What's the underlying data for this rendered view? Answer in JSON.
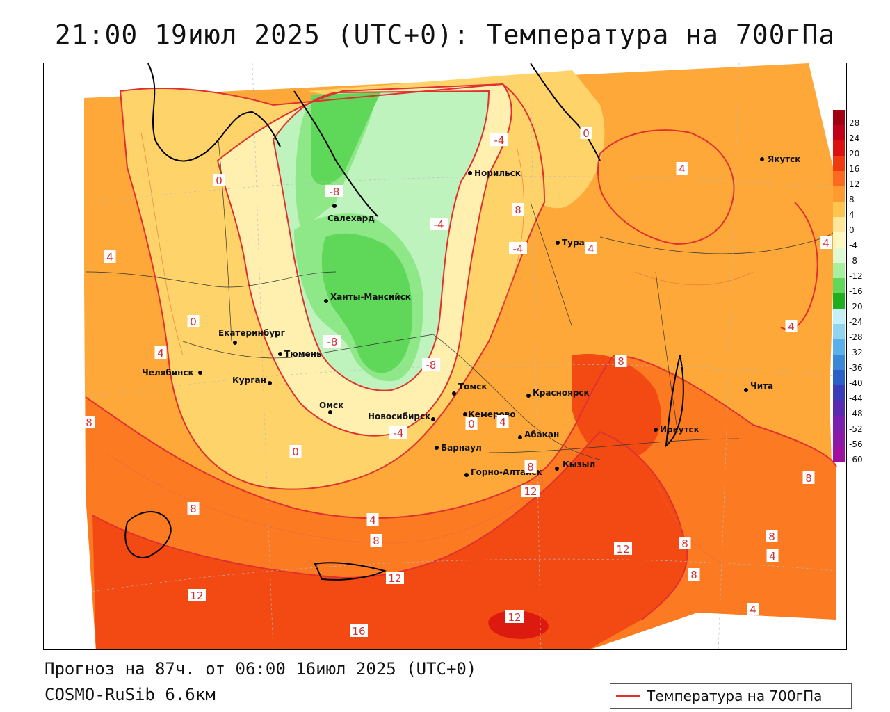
{
  "title": "21:00 19июл 2025 (UTC+0): Температура на 700гПа",
  "subtitle": "Прогноз на 87ч. от 06:00 16июл 2025 (UTC+0)",
  "model": "COSMO-RuSib 6.6км",
  "legend": {
    "label": "Температура на 700гПа",
    "line_color": "#e03030"
  },
  "colorbar": {
    "ticks": [
      "28",
      "24",
      "20",
      "16",
      "12",
      "8",
      "4",
      "0",
      "-4",
      "-8",
      "-12",
      "-16",
      "-20",
      "-24",
      "-28",
      "-32",
      "-36",
      "-40",
      "-44",
      "-48",
      "-52",
      "-56",
      "-60"
    ],
    "colors": [
      "#a00010",
      "#c00018",
      "#dd1010",
      "#f03a10",
      "#fb6a20",
      "#fd9a30",
      "#fec450",
      "#fee79a",
      "#fff6c2",
      "#dffad2",
      "#a8f0a0",
      "#62d85a",
      "#1fae1f",
      "#c6f0f8",
      "#90d4ee",
      "#5ab0e8",
      "#3c88d8",
      "#2a60c8",
      "#3a3cb8",
      "#5a2ab0",
      "#7a20b0",
      "#8c18a8",
      "#a010a0"
    ]
  },
  "cities": [
    {
      "name": "Якутск"
    },
    {
      "name": "Норильск"
    },
    {
      "name": "Салехард"
    },
    {
      "name": "Тура"
    },
    {
      "name": "Ханты-Мансийск"
    },
    {
      "name": "Екатеринбург"
    },
    {
      "name": "Тюмень"
    },
    {
      "name": "Челябинск"
    },
    {
      "name": "Курган"
    },
    {
      "name": "Омск"
    },
    {
      "name": "Новосибирск"
    },
    {
      "name": "Томск"
    },
    {
      "name": "Кемерово"
    },
    {
      "name": "Красноярск"
    },
    {
      "name": "Барнаул"
    },
    {
      "name": "Абакан"
    },
    {
      "name": "Горно-Алтайск"
    },
    {
      "name": "Кызыл"
    },
    {
      "name": "Иркутск"
    },
    {
      "name": "Чита"
    }
  ],
  "contour_labels": [
    "-4",
    "0",
    "4",
    "-8",
    "-4",
    "8",
    "0",
    "4",
    "-4",
    "4",
    "0",
    "4",
    "-8",
    "4",
    "-8",
    "4",
    "8",
    "8",
    "0",
    "-4",
    "0",
    "4",
    "8",
    "12",
    "8",
    "4",
    "8",
    "12",
    "8",
    "8",
    "8",
    "12",
    "12",
    "16",
    "12",
    "8",
    "4",
    "4"
  ],
  "map_colors": {
    "band_16": "#dd1a10",
    "band_12": "#f24a12",
    "band_8": "#fb7a22",
    "band_4": "#fda838",
    "band_0": "#fed46a",
    "band_m4": "#fff0b0",
    "band_m8": "#bff3be",
    "band_m12": "#8ee888",
    "band_m16": "#5fd85a",
    "contour": "#e03030"
  }
}
